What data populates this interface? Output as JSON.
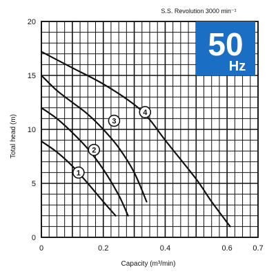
{
  "chart_data": {
    "type": "line",
    "xlabel": "Capacity (m³/min)",
    "ylabel": "Total head (m)",
    "xlim": [
      0,
      0.7
    ],
    "ylim": [
      0,
      20
    ],
    "xticks": [
      "0",
      "0.2",
      "0.4",
      "0.6",
      "0.7"
    ],
    "yticks": [
      "0",
      "5",
      "10",
      "15",
      "20"
    ],
    "grid": true,
    "annotation": "S.S. Revolution 3000 min⁻¹",
    "badge": {
      "value": "50",
      "unit": "Hz",
      "color": "#1a6fc4"
    },
    "series": [
      {
        "name": "1",
        "x": [
          0.0,
          0.05,
          0.1,
          0.15,
          0.2,
          0.24
        ],
        "y": [
          8.9,
          7.9,
          6.6,
          5.0,
          3.3,
          2.0
        ]
      },
      {
        "name": "2",
        "x": [
          0.0,
          0.05,
          0.1,
          0.15,
          0.2,
          0.25,
          0.28
        ],
        "y": [
          12.0,
          11.0,
          9.7,
          8.2,
          6.3,
          3.9,
          2.0
        ]
      },
      {
        "name": "3",
        "x": [
          0.0,
          0.05,
          0.1,
          0.15,
          0.2,
          0.25,
          0.3,
          0.34
        ],
        "y": [
          15.0,
          13.6,
          12.5,
          11.4,
          10.0,
          8.3,
          6.0,
          3.3
        ]
      },
      {
        "name": "4",
        "x": [
          0.0,
          0.1,
          0.2,
          0.3,
          0.35,
          0.4,
          0.5,
          0.55,
          0.61
        ],
        "y": [
          17.2,
          15.7,
          14.2,
          12.3,
          10.9,
          9.0,
          5.4,
          3.3,
          1.0
        ]
      }
    ],
    "curve_labels": [
      {
        "text": "1",
        "x": 0.12,
        "y": 6.0
      },
      {
        "text": "2",
        "x": 0.17,
        "y": 8.1
      },
      {
        "text": "3",
        "x": 0.235,
        "y": 10.8
      },
      {
        "text": "4",
        "x": 0.335,
        "y": 11.6
      }
    ]
  }
}
